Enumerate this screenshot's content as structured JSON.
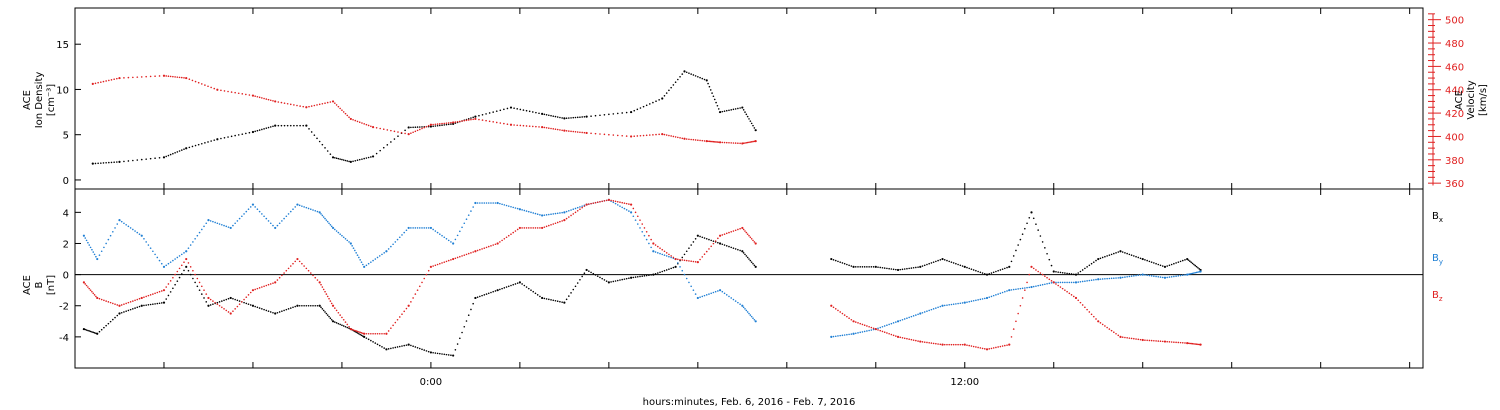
{
  "chart_data": [
    {
      "type": "scatter",
      "panel": "top",
      "ylabel_lines": [
        "ACE",
        "Ion Density"
      ],
      "yunit_left": "[cm⁻³]",
      "y2label_lines": [
        "ACE",
        "Velocity"
      ],
      "y2unit": "[km/s]",
      "ylim": [
        -1,
        19
      ],
      "y2lim": [
        355,
        510
      ],
      "yticks": [
        0,
        5,
        10,
        15
      ],
      "y2ticks": [
        360,
        380,
        400,
        420,
        440,
        460,
        480,
        500
      ],
      "xlim_hours": [
        -8.0,
        22.3
      ],
      "series": [
        {
          "color": "#000000",
          "x": [
            -7.6,
            -7.0,
            -6.0,
            -5.5,
            -4.8,
            -4.0,
            -3.5,
            -2.8,
            -2.2,
            -1.8,
            -1.3,
            -0.5,
            0.0,
            0.5,
            1.0,
            1.8,
            2.5,
            3.0,
            3.5,
            4.5,
            5.2,
            5.7,
            6.2,
            6.5,
            7.0,
            7.3
          ],
          "y": [
            1.8,
            2.0,
            2.5,
            3.5,
            4.5,
            5.3,
            6.0,
            6.0,
            2.5,
            2.0,
            2.6,
            5.8,
            5.9,
            6.2,
            7.0,
            8.0,
            7.3,
            6.8,
            7.0,
            7.5,
            9.0,
            12.0,
            11.0,
            7.5,
            8.0,
            5.5
          ]
        },
        {
          "color": "#e02020",
          "x": [
            -7.6,
            -7.0,
            -6.0,
            -5.5,
            -4.8,
            -4.0,
            -3.5,
            -2.8,
            -2.2,
            -1.8,
            -1.3,
            -0.5,
            0.0,
            0.5,
            1.0,
            1.8,
            2.5,
            3.0,
            3.5,
            4.5,
            5.2,
            5.7,
            6.2,
            6.5,
            7.0,
            7.3
          ],
          "y": [
            445,
            450,
            452,
            450,
            440,
            435,
            430,
            425,
            430,
            415,
            408,
            402,
            410,
            412,
            415,
            410,
            408,
            405,
            403,
            400,
            402,
            398,
            396,
            395,
            394,
            396
          ]
        }
      ]
    },
    {
      "type": "scatter",
      "panel": "bottom",
      "ylabel_lines": [
        "ACE",
        "B"
      ],
      "yunit_left": "[nT]",
      "ylim": [
        -6.0,
        5.5
      ],
      "yticks": [
        -4,
        -2,
        0,
        2,
        4
      ],
      "zero_line": true,
      "xlim_hours": [
        -8.0,
        22.3
      ],
      "series": [
        {
          "name": "Bx",
          "color": "#000000",
          "x": [
            -7.8,
            -7.5,
            -7.0,
            -6.5,
            -6.0,
            -5.5,
            -5.0,
            -4.5,
            -4.0,
            -3.5,
            -3.0,
            -2.5,
            -2.2,
            -1.8,
            -1.5,
            -1.0,
            -0.5,
            0.0,
            0.5,
            1.0,
            1.5,
            2.0,
            2.5,
            3.0,
            3.5,
            4.0,
            4.5,
            5.0,
            5.5,
            6.0,
            6.5,
            7.0,
            7.3,
            9.0,
            9.5,
            10.0,
            10.5,
            11.0,
            11.5,
            12.0,
            12.5,
            13.0,
            13.5,
            14.0,
            14.5,
            15.0,
            15.5,
            16.0,
            16.5,
            17.0,
            17.3
          ],
          "y": [
            -3.5,
            -3.8,
            -2.5,
            -2.0,
            -1.8,
            0.5,
            -2.0,
            -1.5,
            -2.0,
            -2.5,
            -2.0,
            -2.0,
            -3.0,
            -3.5,
            -4.0,
            -4.8,
            -4.5,
            -5.0,
            -5.2,
            -1.5,
            -1.0,
            -0.5,
            -1.5,
            -1.8,
            0.3,
            -0.5,
            -0.2,
            0.0,
            0.5,
            2.5,
            2.0,
            1.5,
            0.5,
            1.0,
            0.5,
            0.5,
            0.3,
            0.5,
            1.0,
            0.5,
            0.0,
            0.5,
            4.0,
            0.2,
            0.0,
            1.0,
            1.5,
            1.0,
            0.5,
            1.0,
            0.3
          ]
        },
        {
          "name": "By",
          "color": "#1f7fd4",
          "x": [
            -7.8,
            -7.5,
            -7.0,
            -6.5,
            -6.0,
            -5.5,
            -5.0,
            -4.5,
            -4.0,
            -3.5,
            -3.0,
            -2.5,
            -2.2,
            -1.8,
            -1.5,
            -1.0,
            -0.5,
            0.0,
            0.5,
            1.0,
            1.5,
            2.0,
            2.5,
            3.0,
            3.5,
            4.0,
            4.5,
            5.0,
            5.5,
            6.0,
            6.5,
            7.0,
            7.3,
            9.0,
            9.5,
            10.0,
            10.5,
            11.0,
            11.5,
            12.0,
            12.5,
            13.0,
            13.5,
            14.0,
            14.5,
            15.0,
            15.5,
            16.0,
            16.5,
            17.0,
            17.3
          ],
          "y": [
            2.5,
            1.0,
            3.5,
            2.5,
            0.5,
            1.5,
            3.5,
            3.0,
            4.5,
            3.0,
            4.5,
            4.0,
            3.0,
            2.0,
            0.5,
            1.5,
            3.0,
            3.0,
            2.0,
            4.6,
            4.6,
            4.2,
            3.8,
            4.0,
            4.5,
            4.8,
            4.0,
            1.5,
            1.0,
            -1.5,
            -1.0,
            -2.0,
            -3.0,
            -4.0,
            -3.8,
            -3.5,
            -3.0,
            -2.5,
            -2.0,
            -1.8,
            -1.5,
            -1.0,
            -0.8,
            -0.5,
            -0.5,
            -0.3,
            -0.2,
            0.0,
            -0.2,
            0.0,
            0.2
          ]
        },
        {
          "name": "Bz",
          "color": "#e02020",
          "x": [
            -7.8,
            -7.5,
            -7.0,
            -6.5,
            -6.0,
            -5.5,
            -5.0,
            -4.5,
            -4.0,
            -3.5,
            -3.0,
            -2.5,
            -2.2,
            -1.8,
            -1.5,
            -1.0,
            -0.5,
            0.0,
            0.5,
            1.0,
            1.5,
            2.0,
            2.5,
            3.0,
            3.5,
            4.0,
            4.5,
            5.0,
            5.5,
            6.0,
            6.5,
            7.0,
            7.3,
            9.0,
            9.5,
            10.0,
            10.5,
            11.0,
            11.5,
            12.0,
            12.5,
            13.0,
            13.5,
            14.0,
            14.5,
            15.0,
            15.5,
            16.0,
            16.5,
            17.0,
            17.3
          ],
          "y": [
            -0.5,
            -1.5,
            -2.0,
            -1.5,
            -1.0,
            1.0,
            -1.5,
            -2.5,
            -1.0,
            -0.5,
            1.0,
            -0.5,
            -2.0,
            -3.5,
            -3.8,
            -3.8,
            -2.0,
            0.5,
            1.0,
            1.5,
            2.0,
            3.0,
            3.0,
            3.5,
            4.5,
            4.8,
            4.5,
            2.0,
            1.0,
            0.8,
            2.5,
            3.0,
            2.0,
            -2.0,
            -3.0,
            -3.5,
            -4.0,
            -4.3,
            -4.5,
            -4.5,
            -4.8,
            -4.5,
            0.5,
            -0.5,
            -1.5,
            -3.0,
            -4.0,
            -4.2,
            -4.3,
            -4.4,
            -4.5
          ]
        }
      ]
    }
  ],
  "legend": {
    "bx": {
      "main": "B",
      "sub": "x"
    },
    "by": {
      "main": "B",
      "sub": "y"
    },
    "bz": {
      "main": "B",
      "sub": "z"
    }
  },
  "time_axis": {
    "tick_labels": [
      {
        "hour": 0,
        "label": "0:00"
      },
      {
        "hour": 12,
        "label": "12:00"
      }
    ],
    "major_tick_hours": [
      -8,
      -6,
      -4,
      -2,
      0,
      2,
      4,
      6,
      8,
      10,
      12,
      14,
      16,
      18,
      20,
      22
    ],
    "xlabel": "hours:minutes, Feb.  6, 2016 - Feb.  7, 2016"
  }
}
